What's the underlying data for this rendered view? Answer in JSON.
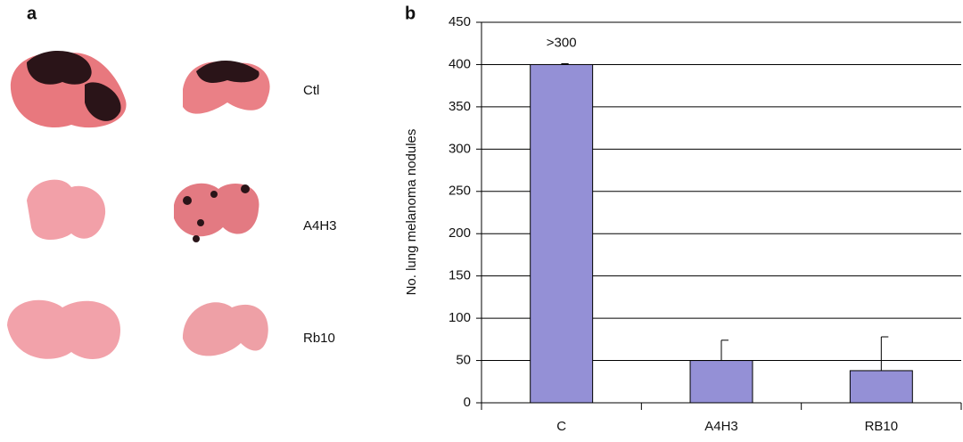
{
  "panel_a": {
    "label": "a",
    "rows": [
      "Ctl",
      "A4H3",
      "Rb10"
    ]
  },
  "chart_data": {
    "type": "bar",
    "panel_label": "b",
    "ylabel": "No. lung melanoma nodules",
    "categories": [
      "C",
      "A4H3",
      "RB10"
    ],
    "values": [
      400,
      50,
      38
    ],
    "errors": [
      1,
      24,
      40
    ],
    "annotation": ">300",
    "color": "#9490d6",
    "ylim": [
      0,
      450
    ],
    "yticks": [
      0,
      50,
      100,
      150,
      200,
      250,
      300,
      350,
      400,
      450
    ],
    "grid": true
  }
}
